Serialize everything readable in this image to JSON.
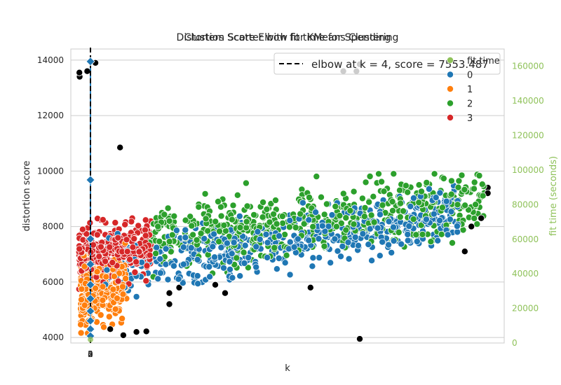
{
  "chart_data": {
    "type": "scatter",
    "title_lines": [
      "Distortion Score Elbow for KMeans Clustering",
      "Clusters Scatter with fit time for Spending"
    ],
    "xlabel": "k",
    "ylabel": "distortion score",
    "y2label": "fit time (seconds)",
    "x_ticks": [
      "0",
      "2",
      "3",
      "4"
    ],
    "ylim": [
      3800,
      14400
    ],
    "y_ticks": [
      4000,
      6000,
      8000,
      10000,
      12000,
      14000
    ],
    "y2lim": [
      0,
      170000
    ],
    "y2_ticks": [
      0,
      20000,
      40000,
      60000,
      80000,
      100000,
      120000,
      140000,
      160000
    ],
    "grid": true,
    "legend_position": "top-right",
    "elbow": {
      "k": 4,
      "score": 7553.487,
      "label": "elbow at k = 4, score = 7553.487"
    },
    "distortion_markers": [
      13950,
      9680,
      7553,
      6640,
      5900,
      5400,
      4950,
      4600,
      4300,
      4050
    ],
    "series": [
      {
        "name": "fit time",
        "color": "#8fc25a"
      },
      {
        "name": "0",
        "color": "#1f77b4"
      },
      {
        "name": "1",
        "color": "#ff7f0e"
      },
      {
        "name": "2",
        "color": "#2ca02c"
      },
      {
        "name": "3",
        "color": "#d62728"
      }
    ],
    "outliers": [
      {
        "series": "1",
        "x": 0.6,
        "y": 13550
      },
      {
        "series": "1",
        "x": 0.7,
        "y": 13400
      },
      {
        "series": "3",
        "x": 3.0,
        "y": 13600
      },
      {
        "series": "3",
        "x": 5.5,
        "y": 13900
      },
      {
        "series": "0",
        "x": 81,
        "y": 13600
      },
      {
        "series": "2",
        "x": 85,
        "y": 13600
      },
      {
        "series": "2",
        "x": 86,
        "y": 13850
      },
      {
        "series": "2",
        "x": 13,
        "y": 10850
      },
      {
        "series": "0",
        "x": 86,
        "y": 3950
      },
      {
        "series": "0",
        "x": 14,
        "y": 4080
      },
      {
        "series": "0",
        "x": 21,
        "y": 4220
      },
      {
        "series": "1",
        "x": 18,
        "y": 4200
      },
      {
        "series": "1",
        "x": 10,
        "y": 4300
      },
      {
        "series": "2",
        "x": 28,
        "y": 5600
      },
      {
        "series": "2",
        "x": 31,
        "y": 5800
      },
      {
        "series": "2",
        "x": 28,
        "y": 5200
      },
      {
        "series": "2",
        "x": 42,
        "y": 5900
      },
      {
        "series": "2",
        "x": 45,
        "y": 5600
      },
      {
        "series": "2",
        "x": 71,
        "y": 5800
      },
      {
        "series": "2",
        "x": 120,
        "y": 8000
      },
      {
        "series": "2",
        "x": 123,
        "y": 8300
      },
      {
        "series": "2",
        "x": 125,
        "y": 9200
      },
      {
        "series": "2",
        "x": 125,
        "y": 9400
      },
      {
        "series": "2",
        "x": 118,
        "y": 7100
      }
    ]
  }
}
